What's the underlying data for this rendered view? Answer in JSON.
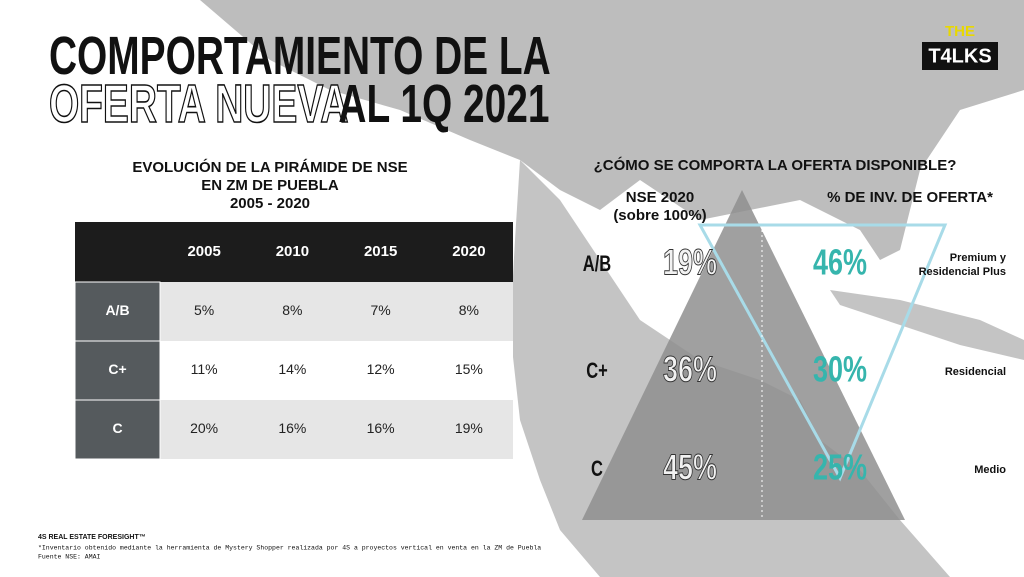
{
  "title": {
    "line1": "COMPORTAMIENTO DE LA",
    "line2_outline": "OFERTA NUEVA",
    "line2_solid": "AL 1Q 2021"
  },
  "logo": {
    "top": "THE",
    "bottom": "T4LKS"
  },
  "table": {
    "title": [
      "EVOLUCIÓN DE LA PIRÁMIDE DE NSE",
      "EN ZM DE PUEBLA",
      "2005 - 2020"
    ],
    "columns": [
      "2005",
      "2010",
      "2015",
      "2020"
    ],
    "rows": [
      {
        "label": "A/B",
        "cells": [
          "5%",
          "8%",
          "7%",
          "8%"
        ]
      },
      {
        "label": "C+",
        "cells": [
          "11%",
          "14%",
          "12%",
          "15%"
        ]
      },
      {
        "label": "C",
        "cells": [
          "20%",
          "16%",
          "16%",
          "19%"
        ]
      }
    ]
  },
  "pyramid": {
    "title": "¿CÓMO SE COMPORTA LA OFERTA DISPONIBLE?",
    "left_header": [
      "NSE 2020",
      "(sobre 100%)"
    ],
    "right_header": "% DE INV. DE OFERTA*",
    "levels": [
      {
        "label": "A/B",
        "nse": "19%",
        "offer": "46%",
        "segment": [
          "Premium y",
          "Residencial Plus"
        ]
      },
      {
        "label": "C+",
        "nse": "36%",
        "offer": "30%",
        "segment": [
          "Residencial"
        ]
      },
      {
        "label": "C",
        "nse": "45%",
        "offer": "25%",
        "segment": [
          "Medio"
        ]
      }
    ]
  },
  "footer": {
    "brand": "4S REAL ESTATE FORESIGHT™",
    "notes": [
      "*Inventario obtenido mediante la herramienta de Mystery Shopper realizada por 4S a proyectos vertical en venta en la ZM de Puebla",
      "Fuente NSE: AMAI"
    ]
  }
}
